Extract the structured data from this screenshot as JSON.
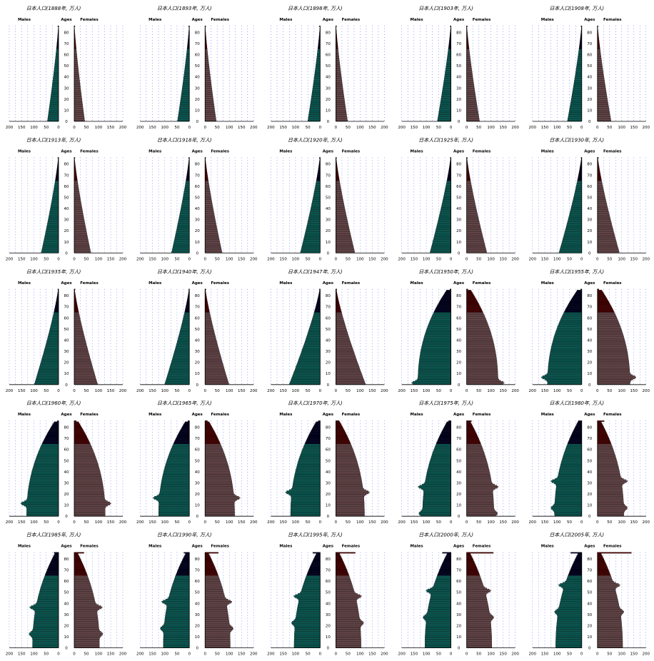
{
  "labels": {
    "males": "Males",
    "ages": "Ages",
    "females": "Females"
  },
  "x_ticks": [
    "200",
    "150",
    "100",
    "50",
    "0"
  ],
  "x_ticks_right": [
    "0",
    "50",
    "100",
    "150",
    "200"
  ],
  "age_ticks": [
    "0",
    "10",
    "20",
    "30",
    "40",
    "50",
    "60",
    "70",
    "80"
  ],
  "colors": {
    "male_young": "#0b5e57",
    "male_old": "#000020",
    "female_young": "#6b4a4d",
    "female_old": "#4a0000",
    "grid": "#4444ff"
  },
  "chart_data": [
    {
      "type": "bar",
      "title": "日本人口(1888年, 万人)",
      "xlabel": "",
      "ylabel": "",
      "xlim": [
        0,
        200
      ],
      "ylim": [
        0,
        85
      ],
      "series": [
        {
          "name": "Males",
          "peak": 45,
          "p85": 3,
          "dip": 0
        },
        {
          "name": "Females",
          "peak": 43,
          "p85": 3,
          "dip": 0
        }
      ]
    },
    {
      "type": "bar",
      "title": "日本人口(1893年, 万人)",
      "xlabel": "",
      "ylabel": "",
      "xlim": [
        0,
        200
      ],
      "ylim": [
        0,
        85
      ],
      "series": [
        {
          "name": "Males",
          "peak": 48,
          "p85": 3,
          "dip": 0
        },
        {
          "name": "Females",
          "peak": 46,
          "p85": 3,
          "dip": 0
        }
      ]
    },
    {
      "type": "bar",
      "title": "日本人口(1898年, 万人)",
      "xlabel": "",
      "ylabel": "",
      "xlim": [
        0,
        200
      ],
      "ylim": [
        0,
        85
      ],
      "series": [
        {
          "name": "Males",
          "peak": 50,
          "p85": 3,
          "dip": 0
        },
        {
          "name": "Females",
          "peak": 48,
          "p85": 3,
          "dip": 0
        }
      ]
    },
    {
      "type": "bar",
      "title": "日本人口(1903年, 万人)",
      "xlabel": "",
      "ylabel": "",
      "xlim": [
        0,
        200
      ],
      "ylim": [
        0,
        85
      ],
      "series": [
        {
          "name": "Males",
          "peak": 55,
          "p85": 3,
          "dip": 0
        },
        {
          "name": "Females",
          "peak": 53,
          "p85": 3,
          "dip": 0
        }
      ]
    },
    {
      "type": "bar",
      "title": "日本人口(1908年, 万人)",
      "xlabel": "",
      "ylabel": "",
      "xlim": [
        0,
        200
      ],
      "ylim": [
        0,
        85
      ],
      "series": [
        {
          "name": "Males",
          "peak": 58,
          "p85": 3,
          "dip": 0
        },
        {
          "name": "Females",
          "peak": 56,
          "p85": 3,
          "dip": 0
        }
      ]
    },
    {
      "type": "bar",
      "title": "日本人口(1913年, 万人)",
      "xlabel": "",
      "ylabel": "",
      "xlim": [
        0,
        200
      ],
      "ylim": [
        0,
        85
      ],
      "series": [
        {
          "name": "Males",
          "peak": 70,
          "p85": 3,
          "dip": 0
        },
        {
          "name": "Females",
          "peak": 68,
          "p85": 3,
          "dip": 0
        }
      ]
    },
    {
      "type": "bar",
      "title": "日本人口(1918年, 万人)",
      "xlabel": "",
      "ylabel": "",
      "xlim": [
        0,
        200
      ],
      "ylim": [
        0,
        85
      ],
      "series": [
        {
          "name": "Males",
          "peak": 72,
          "p85": 3,
          "dip": 0
        },
        {
          "name": "Females",
          "peak": 70,
          "p85": 3,
          "dip": 0
        }
      ]
    },
    {
      "type": "bar",
      "title": "日本人口(1920年, 万人)",
      "xlabel": "",
      "ylabel": "",
      "xlim": [
        0,
        200
      ],
      "ylim": [
        0,
        85
      ],
      "series": [
        {
          "name": "Males",
          "peak": 80,
          "p85": 3,
          "dip": 0
        },
        {
          "name": "Females",
          "peak": 78,
          "p85": 3,
          "dip": 0
        }
      ]
    },
    {
      "type": "bar",
      "title": "日本人口(1925年, 万人)",
      "xlabel": "",
      "ylabel": "",
      "xlim": [
        0,
        200
      ],
      "ylim": [
        0,
        85
      ],
      "series": [
        {
          "name": "Males",
          "peak": 85,
          "p85": 3,
          "dip": 0
        },
        {
          "name": "Females",
          "peak": 83,
          "p85": 3,
          "dip": 0
        }
      ]
    },
    {
      "type": "bar",
      "title": "日本人口(1930年, 万人)",
      "xlabel": "",
      "ylabel": "",
      "xlim": [
        0,
        200
      ],
      "ylim": [
        0,
        85
      ],
      "series": [
        {
          "name": "Males",
          "peak": 92,
          "p85": 3,
          "dip": 0
        },
        {
          "name": "Females",
          "peak": 90,
          "p85": 4,
          "dip": 0
        }
      ]
    },
    {
      "type": "bar",
      "title": "日本人口(1935年, 万人)",
      "xlabel": "",
      "ylabel": "",
      "xlim": [
        0,
        200
      ],
      "ylim": [
        0,
        85
      ],
      "series": [
        {
          "name": "Males",
          "peak": 98,
          "p85": 3,
          "dip": 0
        },
        {
          "name": "Females",
          "peak": 96,
          "p85": 4,
          "dip": 0
        }
      ]
    },
    {
      "type": "bar",
      "title": "日本人口(1940年, 万人)",
      "xlabel": "",
      "ylabel": "",
      "xlim": [
        0,
        200
      ],
      "ylim": [
        0,
        85
      ],
      "series": [
        {
          "name": "Males",
          "peak": 100,
          "p85": 3,
          "dip": 0
        },
        {
          "name": "Females",
          "peak": 98,
          "p85": 4,
          "dip": 0
        }
      ]
    },
    {
      "type": "bar",
      "title": "日本人口(1947年, 万人)",
      "xlabel": "",
      "ylabel": "",
      "xlim": [
        0,
        200
      ],
      "ylim": [
        0,
        85
      ],
      "series": [
        {
          "name": "Males",
          "peak": 125,
          "p85": 3,
          "dip": 0
        },
        {
          "name": "Females",
          "peak": 122,
          "p85": 4,
          "dip": 0
        }
      ]
    },
    {
      "type": "bar",
      "title": "日本人口(1950年, 万人)",
      "xlabel": "",
      "ylabel": "",
      "xlim": [
        0,
        200
      ],
      "ylim": [
        0,
        85
      ],
      "series": [
        {
          "name": "Males",
          "peak": 135,
          "p85": 4,
          "dip": 0
        },
        {
          "name": "Females",
          "peak": 130,
          "p85": 5,
          "dip": 0
        }
      ]
    },
    {
      "type": "bar",
      "title": "日本人口(1955年, 万人)",
      "xlabel": "",
      "ylabel": "",
      "xlim": [
        0,
        200
      ],
      "ylim": [
        0,
        85
      ],
      "series": [
        {
          "name": "Males",
          "peak": 140,
          "p85": 4,
          "dip": 0
        },
        {
          "name": "Females",
          "peak": 135,
          "p85": 6,
          "dip": 0
        }
      ]
    },
    {
      "type": "bar",
      "title": "日本人口(1960年, 万人)",
      "xlabel": "",
      "ylabel": "",
      "xlim": [
        0,
        200
      ],
      "ylim": [
        0,
        85
      ],
      "series": [
        {
          "name": "Males",
          "peak": 130,
          "p85": 5,
          "dip": 10
        },
        {
          "name": "Females",
          "peak": 128,
          "p85": 8,
          "dip": 10
        }
      ]
    },
    {
      "type": "bar",
      "title": "日本人口(1965年, 万人)",
      "xlabel": "",
      "ylabel": "",
      "xlim": [
        0,
        200
      ],
      "ylim": [
        0,
        85
      ],
      "series": [
        {
          "name": "Males",
          "peak": 125,
          "p85": 6,
          "dip": 15
        },
        {
          "name": "Females",
          "peak": 122,
          "p85": 10,
          "dip": 15
        }
      ]
    },
    {
      "type": "bar",
      "title": "日本人口(1970年, 万人)",
      "xlabel": "",
      "ylabel": "",
      "xlim": [
        0,
        200
      ],
      "ylim": [
        0,
        85
      ],
      "series": [
        {
          "name": "Males",
          "peak": 120,
          "p85": 8,
          "dip": 20
        },
        {
          "name": "Females",
          "peak": 118,
          "p85": 14,
          "dip": 20
        }
      ]
    },
    {
      "type": "bar",
      "title": "日本人口(1975年, 万人)",
      "xlabel": "",
      "ylabel": "",
      "xlim": [
        0,
        200
      ],
      "ylim": [
        0,
        85
      ],
      "series": [
        {
          "name": "Males",
          "peak": 115,
          "p85": 10,
          "dip": 25
        },
        {
          "name": "Females",
          "peak": 112,
          "p85": 20,
          "dip": 25
        }
      ]
    },
    {
      "type": "bar",
      "title": "日本人口(1980年, 万人)",
      "xlabel": "",
      "ylabel": "",
      "xlim": [
        0,
        200
      ],
      "ylim": [
        0,
        85
      ],
      "series": [
        {
          "name": "Males",
          "peak": 110,
          "p85": 14,
          "dip": 30
        },
        {
          "name": "Females",
          "peak": 108,
          "p85": 28,
          "dip": 30
        }
      ]
    },
    {
      "type": "bar",
      "title": "日本人口(1985年, 万人)",
      "xlabel": "",
      "ylabel": "",
      "xlim": [
        0,
        200
      ],
      "ylim": [
        0,
        85
      ],
      "series": [
        {
          "name": "Males",
          "peak": 105,
          "p85": 18,
          "dip": 35
        },
        {
          "name": "Females",
          "peak": 103,
          "p85": 40,
          "dip": 35
        }
      ]
    },
    {
      "type": "bar",
      "title": "日本人口(1990年, 万人)",
      "xlabel": "",
      "ylabel": "",
      "xlim": [
        0,
        200
      ],
      "ylim": [
        0,
        85
      ],
      "series": [
        {
          "name": "Males",
          "peak": 105,
          "p85": 22,
          "dip": 40
        },
        {
          "name": "Females",
          "peak": 103,
          "p85": 55,
          "dip": 40
        }
      ]
    },
    {
      "type": "bar",
      "title": "日本人口(1995年, 万人)",
      "xlabel": "",
      "ylabel": "",
      "xlim": [
        0,
        200
      ],
      "ylim": [
        0,
        85
      ],
      "series": [
        {
          "name": "Males",
          "peak": 105,
          "p85": 30,
          "dip": 45
        },
        {
          "name": "Females",
          "peak": 103,
          "p85": 80,
          "dip": 45
        }
      ]
    },
    {
      "type": "bar",
      "title": "日本人口(2000年, 万人)",
      "xlabel": "",
      "ylabel": "",
      "xlim": [
        0,
        200
      ],
      "ylim": [
        0,
        85
      ],
      "series": [
        {
          "name": "Males",
          "peak": 105,
          "p85": 35,
          "dip": 50
        },
        {
          "name": "Females",
          "peak": 103,
          "p85": 110,
          "dip": 50
        }
      ]
    },
    {
      "type": "bar",
      "title": "日本人口(2005年, 万人)",
      "xlabel": "",
      "ylabel": "",
      "xlim": [
        0,
        200
      ],
      "ylim": [
        0,
        85
      ],
      "series": [
        {
          "name": "Males",
          "peak": 105,
          "p85": 45,
          "dip": 55
        },
        {
          "name": "Females",
          "peak": 103,
          "p85": 140,
          "dip": 55
        }
      ]
    }
  ]
}
